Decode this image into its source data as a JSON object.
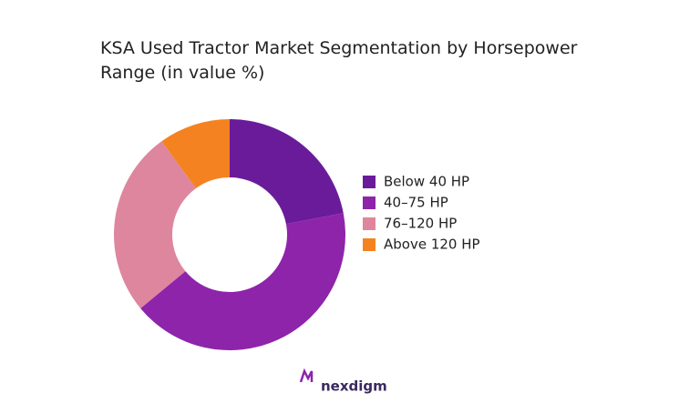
{
  "chart_data": {
    "type": "donut",
    "title": "KSA Used Tractor Market Segmentation by Horsepower Range (in value %)",
    "categories": [
      "Below 40 HP",
      "40–75 HP",
      "76–120 HP",
      "Above 120 HP"
    ],
    "values": [
      22,
      42,
      26,
      10
    ],
    "colors": [
      "#6a1b9a",
      "#8e24aa",
      "#dd869e",
      "#f58220"
    ],
    "legend": "right"
  },
  "footer": {
    "logo": "nexdigm"
  }
}
